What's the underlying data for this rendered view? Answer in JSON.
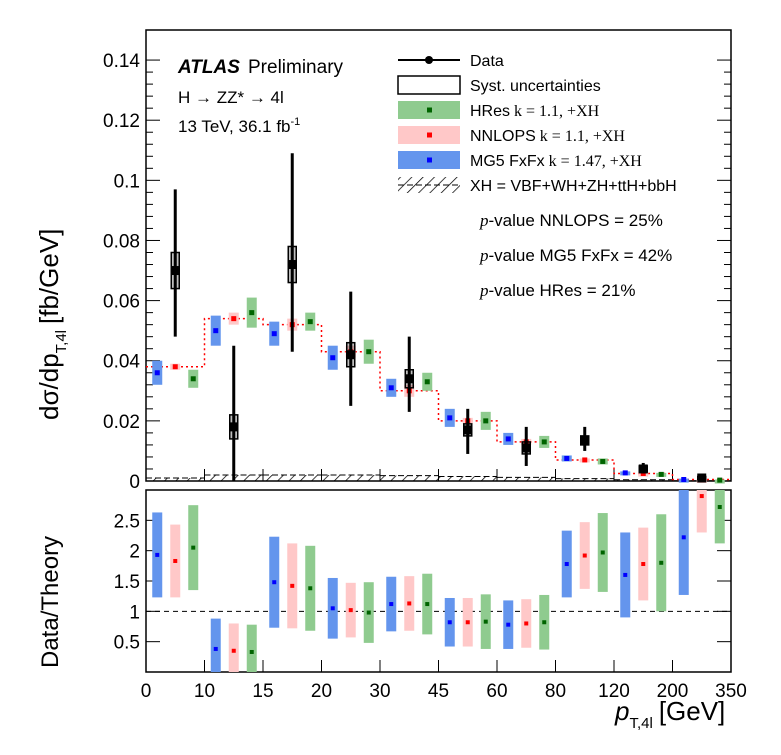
{
  "chart_data": {
    "type": "scatter",
    "experiment": "ATLAS",
    "experiment_tag": "Preliminary",
    "process": "H → ZZ* → 4l",
    "energy_lumi": "13 TeV, 36.1 fb",
    "lumi_exp": "-1",
    "ylabel": "dσ/dp",
    "ylabel_sub": "T,4l",
    "ylabel_unit": "[fb/GeV]",
    "ratio_ylabel": "Data/Theory",
    "xlabel": "p",
    "xlabel_sub": "T,4l",
    "xlabel_unit": "[GeV]",
    "bin_edges": [
      0,
      10,
      15,
      20,
      30,
      45,
      60,
      80,
      120,
      200,
      350
    ],
    "x_tick_labels": [
      "0",
      "10",
      "15",
      "20",
      "30",
      "45",
      "60",
      "80",
      "120",
      "200",
      "350"
    ],
    "ylim": [
      0,
      0.15
    ],
    "y_ticks": [
      "0",
      "0.02",
      "0.04",
      "0.06",
      "0.08",
      "0.1",
      "0.12",
      "0.14"
    ],
    "ratio_ylim": [
      0,
      3
    ],
    "ratio_ticks": [
      "0.5",
      "1",
      "1.5",
      "2",
      "2.5"
    ],
    "legend": [
      {
        "key": "data",
        "label": "Data"
      },
      {
        "key": "syst",
        "label": "Syst. uncertainties"
      },
      {
        "key": "hres",
        "label": "HRes",
        "k": "k = 1.1, +XH",
        "color": "#8fcb8f"
      },
      {
        "key": "nnlops",
        "label": "NNLOPS",
        "k": "k = 1.1, +XH",
        "color": "#ffc8c8"
      },
      {
        "key": "mg5",
        "label": "MG5 FxFx",
        "k": "k = 1.47, +XH",
        "color": "#6495ed"
      },
      {
        "key": "xh",
        "label": "XH = VBF+WH+ZH+ttH+bbH"
      }
    ],
    "pvalues": [
      {
        "p": "p",
        "text": "-value NNLOPS = 25%"
      },
      {
        "p": "p",
        "text": "-value MG5 FxFx = 42%"
      },
      {
        "p": "p",
        "text": "-value HRes = 21%"
      }
    ],
    "data": {
      "values": [
        0.07,
        0.018,
        0.072,
        0.042,
        0.034,
        0.017,
        0.011,
        0.0135,
        0.004,
        0.001
      ],
      "err_up": [
        0.027,
        0.027,
        0.037,
        0.021,
        0.014,
        0.007,
        0.007,
        0.0045,
        0.002,
        0.001
      ],
      "err_down": [
        0.022,
        0.018,
        0.029,
        0.017,
        0.011,
        0.008,
        0.006,
        0.0035,
        0.0015,
        0.001
      ],
      "syst": [
        0.006,
        0.004,
        0.006,
        0.004,
        0.003,
        0.002,
        0.002,
        0.0015,
        0.001,
        0.0005
      ]
    },
    "series": [
      {
        "name": "MG5 FxFx",
        "values": [
          0.036,
          0.05,
          0.049,
          0.041,
          0.031,
          0.021,
          0.014,
          0.0075,
          0.0027,
          0.0005
        ],
        "band": [
          0.004,
          0.005,
          0.004,
          0.004,
          0.003,
          0.003,
          0.002,
          0.001,
          0.0005,
          0.0003
        ],
        "ratio": [
          1.93,
          0.38,
          1.48,
          1.05,
          1.12,
          0.82,
          0.78,
          1.78,
          1.6,
          2.22
        ],
        "ratio_band": [
          0.7,
          0.5,
          0.75,
          0.5,
          0.45,
          0.4,
          0.4,
          0.55,
          0.7,
          0.95
        ]
      },
      {
        "name": "NNLOPS",
        "values": [
          0.038,
          0.054,
          0.052,
          0.043,
          0.03,
          0.02,
          0.013,
          0.007,
          0.0025,
          0.0005
        ],
        "band": [
          0.001,
          0.002,
          0.002,
          0.002,
          0.002,
          0.001,
          0.001,
          0.0005,
          0.0003,
          0.0002
        ],
        "ratio": [
          1.83,
          0.35,
          1.42,
          1.02,
          1.13,
          0.82,
          0.8,
          1.92,
          1.78,
          2.9
        ],
        "ratio_band": [
          0.6,
          0.45,
          0.7,
          0.45,
          0.45,
          0.4,
          0.4,
          0.55,
          0.6,
          0.6
        ]
      },
      {
        "name": "HRes",
        "values": [
          0.034,
          0.056,
          0.053,
          0.043,
          0.033,
          0.02,
          0.013,
          0.0065,
          0.0022,
          0.0003
        ],
        "band": [
          0.003,
          0.005,
          0.003,
          0.004,
          0.003,
          0.003,
          0.002,
          0.001,
          0.0005,
          0.0002
        ],
        "ratio": [
          2.05,
          0.33,
          1.38,
          0.98,
          1.12,
          0.83,
          0.82,
          1.97,
          1.8,
          2.72
        ],
        "ratio_band": [
          0.7,
          0.45,
          0.7,
          0.5,
          0.5,
          0.45,
          0.45,
          0.65,
          0.8,
          0.6
        ]
      }
    ],
    "xh": [
      0.001,
      0.002,
      0.002,
      0.002,
      0.0018,
      0.0015,
      0.0012,
      0.0008,
      0.0004,
      0.0001
    ]
  }
}
